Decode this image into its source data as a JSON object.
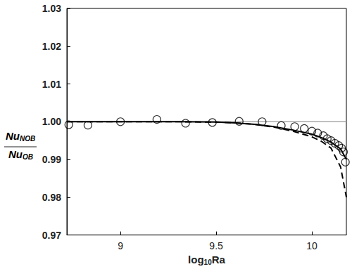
{
  "chart_data": {
    "type": "line",
    "xlabel": {
      "text": "log",
      "sub": "10",
      "after": "Ra"
    },
    "ylabel": {
      "numerator": {
        "text": "Nu",
        "sub": "NOB"
      },
      "denominator": {
        "text": "Nu",
        "sub": "OB"
      }
    },
    "xlim": [
      8.72,
      10.18
    ],
    "ylim": [
      0.97,
      1.03
    ],
    "xticks": [
      9,
      9.5,
      10
    ],
    "yticks": [
      0.97,
      0.98,
      0.99,
      {
        "value": 1,
        "label": "1.00"
      },
      1.01,
      1.02,
      1.03
    ],
    "grid": false,
    "series": [
      {
        "type": "line",
        "color": "#999999",
        "line_style": "solid",
        "x": [
          8.72,
          10.18
        ],
        "values": [
          1,
          1
        ]
      },
      {
        "type": "line",
        "color": "#000000",
        "line_style": "solid",
        "x": [
          8.72,
          9.0,
          9.3,
          9.5,
          9.6,
          9.7,
          9.8,
          9.9,
          10.0,
          10.05,
          10.1,
          10.15,
          10.18
        ],
        "values": [
          1.0,
          1.0,
          1.0,
          0.9999,
          0.9997,
          0.9993,
          0.9987,
          0.9978,
          0.9967,
          0.9958,
          0.9946,
          0.9928,
          0.99
        ]
      },
      {
        "type": "line",
        "color": "#000000",
        "line_style": "dashed",
        "x": [
          8.72,
          9.0,
          9.3,
          9.5,
          9.6,
          9.7,
          9.8,
          9.9,
          10.0,
          10.05,
          10.1,
          10.15,
          10.18
        ],
        "values": [
          1.0,
          1.0,
          1.0,
          0.9999,
          0.9997,
          0.9993,
          0.9986,
          0.9975,
          0.996,
          0.9948,
          0.993,
          0.988,
          0.98
        ]
      },
      {
        "type": "scatter",
        "color": "#000000",
        "marker": "open_circle",
        "x": [
          8.73,
          8.83,
          9.0,
          9.19,
          9.34,
          9.48,
          9.62,
          9.74,
          9.84,
          9.91,
          9.96,
          10.0,
          10.03,
          10.06,
          10.08,
          10.1,
          10.12,
          10.14,
          10.155,
          10.165,
          10.175
        ],
        "values": [
          0.9992,
          0.9991,
          1.0,
          1.0006,
          0.9996,
          0.9998,
          1.0001,
          1.0,
          0.999,
          0.9987,
          0.9982,
          0.9975,
          0.997,
          0.9963,
          0.9955,
          0.995,
          0.9943,
          0.9937,
          0.993,
          0.992,
          0.9893
        ]
      }
    ]
  }
}
